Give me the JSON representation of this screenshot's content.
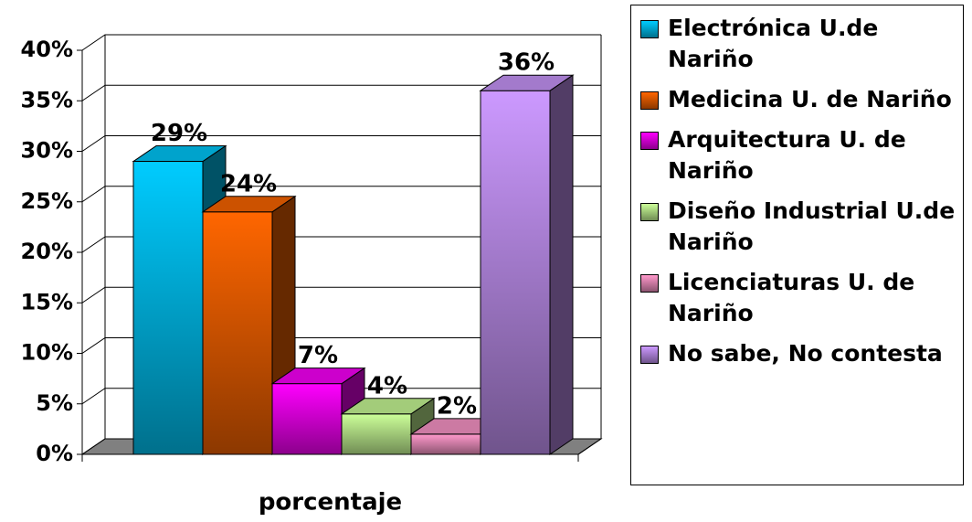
{
  "chart_data": {
    "type": "bar3d",
    "categories": [
      "porcentaje"
    ],
    "series": [
      {
        "name": "Electrónica U.de Nariño",
        "color": "#00ccff",
        "values": [
          29
        ],
        "value_labels": [
          "29%"
        ]
      },
      {
        "name": "Medicina U. de Nariño",
        "color": "#ff6600",
        "values": [
          24
        ],
        "value_labels": [
          "24%"
        ]
      },
      {
        "name": "Arquitectura U. de Nariño",
        "color": "#ff00ff",
        "values": [
          7
        ],
        "value_labels": [
          "7%"
        ]
      },
      {
        "name": "Diseño Industrial U.de Nariño",
        "color": "#ccff99",
        "values": [
          4
        ],
        "value_labels": [
          "4%"
        ]
      },
      {
        "name": "Licenciaturas U. de Nariño",
        "color": "#ff99cc",
        "values": [
          2
        ],
        "value_labels": [
          "2%"
        ]
      },
      {
        "name": "No sabe, No contesta",
        "color": "#cc99ff",
        "values": [
          36
        ],
        "value_labels": [
          "36%"
        ]
      }
    ],
    "ylim": [
      0,
      40
    ],
    "yticks": [
      {
        "value": 0,
        "label": "0%"
      },
      {
        "value": 5,
        "label": "5%"
      },
      {
        "value": 10,
        "label": "10%"
      },
      {
        "value": 15,
        "label": "15%"
      },
      {
        "value": 20,
        "label": "20%"
      },
      {
        "value": 25,
        "label": "25%"
      },
      {
        "value": 30,
        "label": "30%"
      },
      {
        "value": 35,
        "label": "35%"
      },
      {
        "value": 40,
        "label": "40%"
      }
    ],
    "grid": true,
    "legend": "right"
  }
}
